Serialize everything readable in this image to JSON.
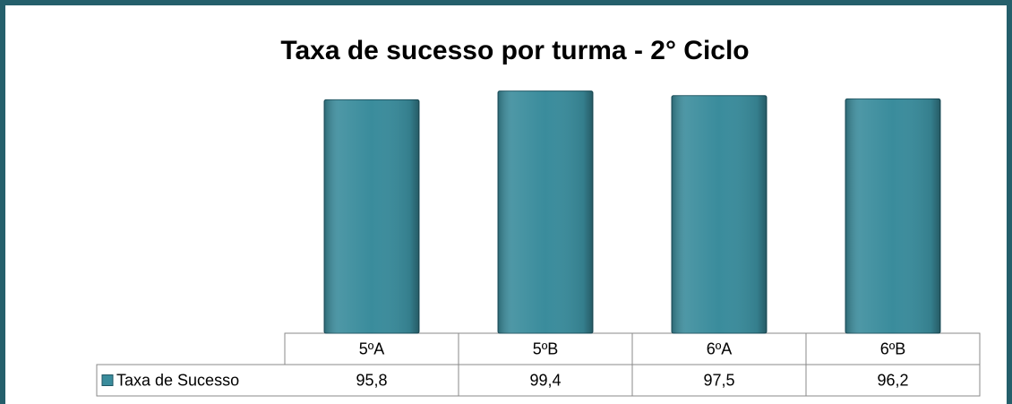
{
  "chart_data": {
    "type": "bar",
    "title": "Taxa de sucesso por turma - 2° Ciclo",
    "categories": [
      "5ºA",
      "5ºB",
      "6ºA",
      "6ºB"
    ],
    "series": [
      {
        "name": "Taxa de Sucesso",
        "color": "#3a8c9c",
        "values": [
          95.8,
          99.4,
          97.5,
          96.2
        ],
        "value_labels": [
          "95,8",
          "99,4",
          "97,5",
          "96,2"
        ]
      }
    ],
    "ylim": [
      0,
      100
    ],
    "legend": "left"
  }
}
